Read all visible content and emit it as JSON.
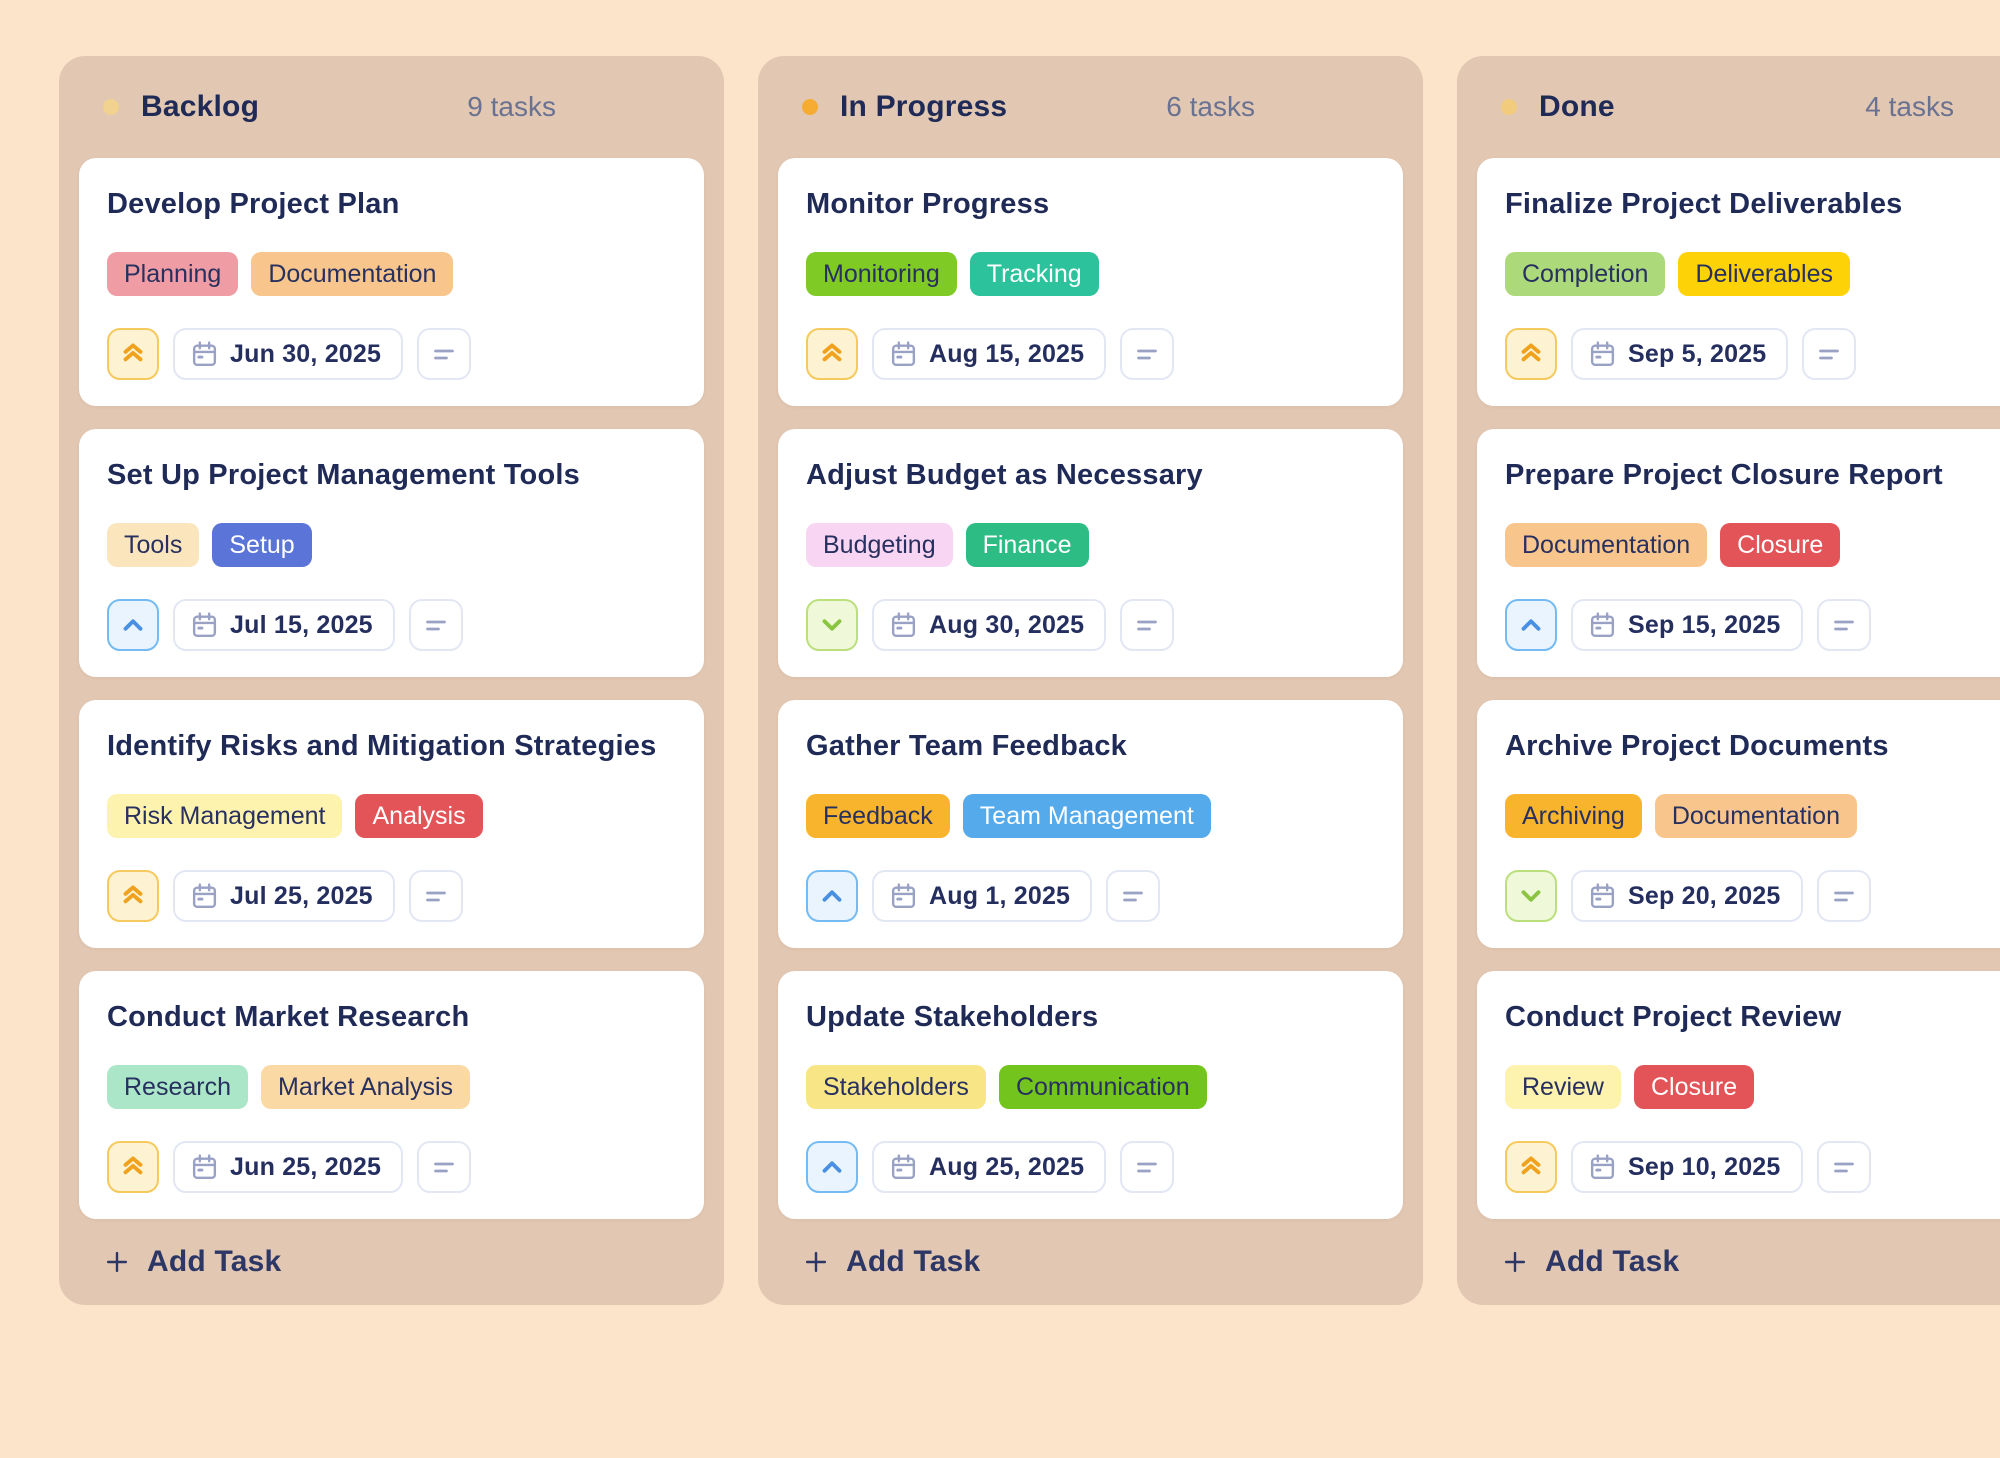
{
  "colors": {
    "page_bg": "#fce4cb",
    "column_bg": "#e2c7b2",
    "card_bg": "#ffffff",
    "title_text": "#1f2a56",
    "count_text": "#6a7291",
    "chip_border": "#e3e7f4",
    "muted_icon": "#99a1c4",
    "header_icon": "#2c3766"
  },
  "priority_styles": {
    "high": {
      "icon": "double-up",
      "color": "#f0a11d",
      "bg": "#fdf3d2",
      "border": "#f6c95e"
    },
    "medium": {
      "icon": "up",
      "color": "#4a90e2",
      "bg": "#eaf4fe",
      "border": "#74bbf3"
    },
    "low": {
      "icon": "down",
      "color": "#8ac441",
      "bg": "#eff9d9",
      "border": "#bbdf7c"
    }
  },
  "board": {
    "columns": [
      {
        "title": "Backlog",
        "count": "9 tasks",
        "dot_color": "#f1d28e",
        "add_task_label": "Add Task",
        "cards": [
          {
            "title": "Develop Project Plan",
            "tags": [
              {
                "label": "Planning",
                "bg": "#ef9ca4",
                "text": "#27305e"
              },
              {
                "label": "Documentation",
                "bg": "#f8c68c",
                "text": "#27305e"
              }
            ],
            "priority": "high",
            "due_date": "Jun 30, 2025"
          },
          {
            "title": "Set Up Project Management Tools",
            "tags": [
              {
                "label": "Tools",
                "bg": "#fbe5bd",
                "text": "#27305e"
              },
              {
                "label": "Setup",
                "bg": "#5a74d7",
                "text": "#ffffff"
              }
            ],
            "priority": "medium",
            "due_date": "Jul 15, 2025"
          },
          {
            "title": "Identify Risks and Mitigation Strategies",
            "tags": [
              {
                "label": "Risk Management",
                "bg": "#fdf2ae",
                "text": "#27305e"
              },
              {
                "label": "Analysis",
                "bg": "#e25457",
                "text": "#ffffff"
              }
            ],
            "priority": "high",
            "due_date": "Jul 25, 2025"
          },
          {
            "title": "Conduct Market Research",
            "tags": [
              {
                "label": "Research",
                "bg": "#abe6c8",
                "text": "#27305e"
              },
              {
                "label": "Market Analysis",
                "bg": "#fbd9a4",
                "text": "#27305e"
              }
            ],
            "priority": "high",
            "due_date": "Jun 25, 2025"
          }
        ]
      },
      {
        "title": "In Progress",
        "count": "6 tasks",
        "dot_color": "#f6ac33",
        "add_task_label": "Add Task",
        "cards": [
          {
            "title": "Monitor Progress",
            "tags": [
              {
                "label": "Monitoring",
                "bg": "#7fca25",
                "text": "#27305e"
              },
              {
                "label": "Tracking",
                "bg": "#2cc29b",
                "text": "#ffffff"
              }
            ],
            "priority": "high",
            "due_date": "Aug 15, 2025"
          },
          {
            "title": "Adjust Budget as Necessary",
            "tags": [
              {
                "label": "Budgeting",
                "bg": "#f8d5f2",
                "text": "#27305e"
              },
              {
                "label": "Finance",
                "bg": "#2cbc84",
                "text": "#ffffff"
              }
            ],
            "priority": "low",
            "due_date": "Aug 30, 2025"
          },
          {
            "title": "Gather Team Feedback",
            "tags": [
              {
                "label": "Feedback",
                "bg": "#f7b42c",
                "text": "#27305e"
              },
              {
                "label": "Team Management",
                "bg": "#55aaeb",
                "text": "#ffffff"
              }
            ],
            "priority": "medium",
            "due_date": "Aug 1, 2025"
          },
          {
            "title": "Update Stakeholders",
            "tags": [
              {
                "label": "Stakeholders",
                "bg": "#f8e585",
                "text": "#27305e"
              },
              {
                "label": "Communication",
                "bg": "#74c41e",
                "text": "#27305e"
              }
            ],
            "priority": "medium",
            "due_date": "Aug 25, 2025"
          }
        ]
      },
      {
        "title": "Done",
        "count": "4 tasks",
        "dot_color": "#f2cc7c",
        "add_task_label": "Add Task",
        "cards": [
          {
            "title": "Finalize Project Deliverables",
            "tags": [
              {
                "label": "Completion",
                "bg": "#acd97a",
                "text": "#27305e"
              },
              {
                "label": "Deliverables",
                "bg": "#fdd206",
                "text": "#27305e"
              }
            ],
            "priority": "high",
            "due_date": "Sep 5, 2025"
          },
          {
            "title": "Prepare Project Closure Report",
            "tags": [
              {
                "label": "Documentation",
                "bg": "#f8c68c",
                "text": "#27305e"
              },
              {
                "label": "Closure",
                "bg": "#e25457",
                "text": "#ffffff"
              }
            ],
            "priority": "medium",
            "due_date": "Sep 15, 2025"
          },
          {
            "title": "Archive Project Documents",
            "tags": [
              {
                "label": "Archiving",
                "bg": "#f7b42c",
                "text": "#27305e"
              },
              {
                "label": "Documentation",
                "bg": "#f8c68c",
                "text": "#27305e"
              }
            ],
            "priority": "low",
            "due_date": "Sep 20, 2025"
          },
          {
            "title": "Conduct Project Review",
            "tags": [
              {
                "label": "Review",
                "bg": "#fdf2ae",
                "text": "#27305e"
              },
              {
                "label": "Closure",
                "bg": "#e25457",
                "text": "#ffffff"
              }
            ],
            "priority": "high",
            "due_date": "Sep 10, 2025"
          }
        ]
      }
    ]
  }
}
